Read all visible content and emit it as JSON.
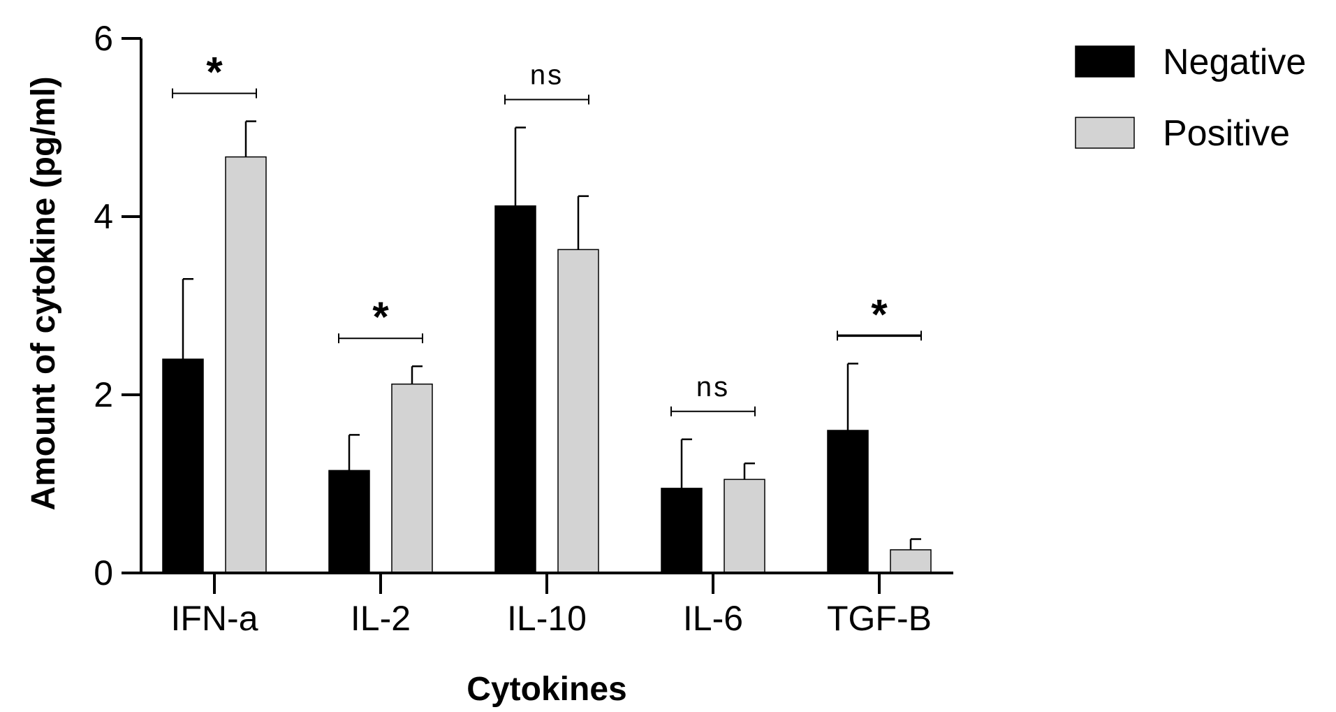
{
  "chart_data": {
    "type": "bar",
    "title": "",
    "xlabel": "Cytokines",
    "ylabel": "Amount of cytokine (pg/ml)",
    "ylim": [
      0,
      6
    ],
    "yticks": [
      "0",
      "2",
      "4",
      "6"
    ],
    "categories": [
      "IFN-a",
      "IL-2",
      "IL-10",
      "IL-6",
      "TGF-B"
    ],
    "series": [
      {
        "name": "Negative",
        "color": "#000000",
        "values": [
          2.4,
          1.15,
          4.12,
          0.95,
          1.6
        ],
        "errors": [
          0.9,
          0.4,
          0.88,
          0.55,
          0.75
        ]
      },
      {
        "name": "Positive",
        "color": "#d3d3d3",
        "values": [
          4.67,
          2.12,
          3.63,
          1.05,
          0.26
        ],
        "errors": [
          0.4,
          0.2,
          0.6,
          0.18,
          0.12
        ]
      }
    ],
    "significance": [
      "*",
      "*",
      "ns",
      "ns",
      "*"
    ],
    "legend_position": "top-right"
  }
}
